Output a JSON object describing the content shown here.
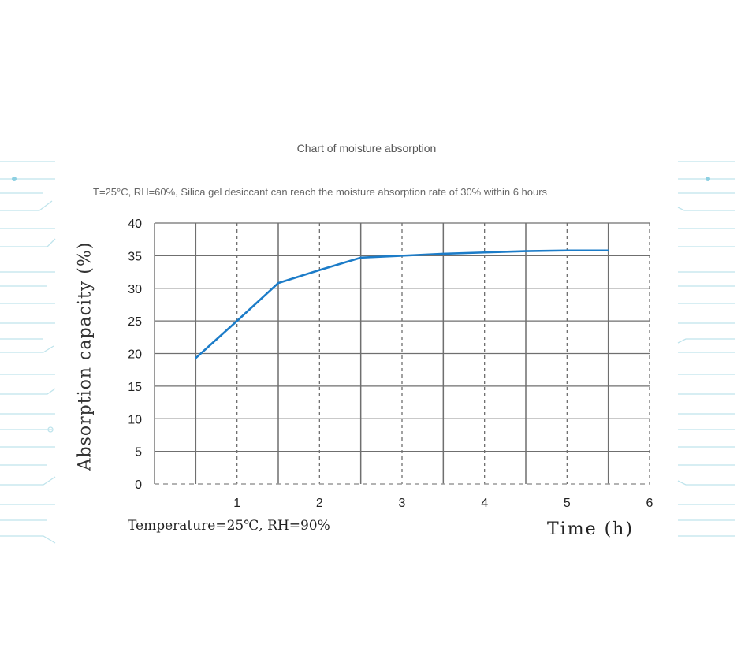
{
  "chart_data": {
    "type": "line",
    "title": "Chart of moisture absorption",
    "subtitle": "T=25°C,    RH=60%, Silica gel desiccant can reach the moisture absorption rate of 30% within 6 hours",
    "ylabel": "Absorption capacity   (%)",
    "xlabel": "Time (h)",
    "annotation": "Temperature=25℃, RH=90%",
    "x_ticks": [
      "1",
      "2",
      "3",
      "4",
      "5",
      "6"
    ],
    "y_ticks": [
      "0",
      "5",
      "10",
      "15",
      "20",
      "25",
      "30",
      "35",
      "40"
    ],
    "xlim": [
      0,
      6
    ],
    "ylim": [
      0,
      40
    ],
    "grid": true,
    "legend": "none",
    "x": [
      0.5,
      1.0,
      1.5,
      2.0,
      2.5,
      3.0,
      3.5,
      4.0,
      4.5,
      5.0,
      5.5
    ],
    "y": [
      19.3,
      25.0,
      30.8,
      32.8,
      34.7,
      35.0,
      35.3,
      35.5,
      35.7,
      35.8,
      35.8
    ],
    "line_color": "#1c7cc8",
    "grid_color": "#6f6f6f"
  }
}
